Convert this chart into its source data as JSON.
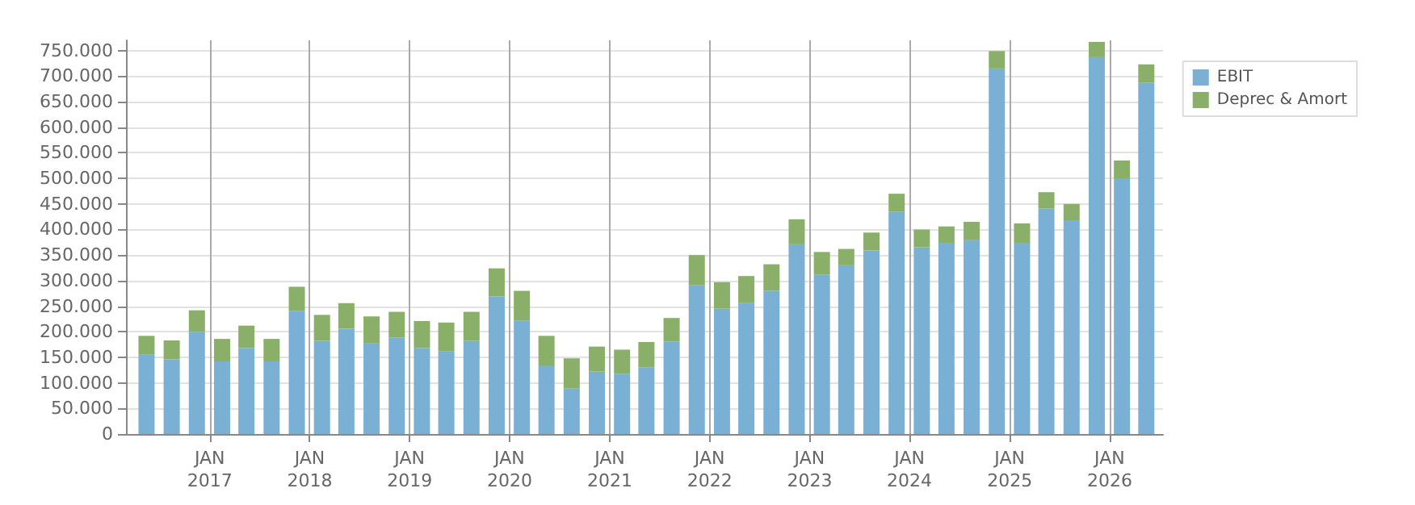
{
  "chart_data": {
    "type": "bar",
    "stacked": true,
    "x": [
      "2016-05-15",
      "2016-08-15",
      "2016-11-15",
      "2017-02-15",
      "2017-05-15",
      "2017-08-15",
      "2017-11-15",
      "2018-02-15",
      "2018-05-15",
      "2018-08-15",
      "2018-11-15",
      "2019-02-15",
      "2019-05-15",
      "2019-08-15",
      "2019-11-15",
      "2020-02-15",
      "2020-05-15",
      "2020-08-15",
      "2020-11-15",
      "2021-02-15",
      "2021-05-15",
      "2021-08-15",
      "2021-11-15",
      "2022-02-15",
      "2022-05-15",
      "2022-08-15",
      "2022-11-15",
      "2023-02-15",
      "2023-05-15",
      "2023-08-15",
      "2023-11-15",
      "2024-02-15",
      "2024-05-15",
      "2024-08-15",
      "2024-11-15",
      "2025-02-15",
      "2025-05-15",
      "2025-08-15",
      "2025-11-15",
      "2026-02-15",
      "2026-05-15"
    ],
    "series": [
      {
        "name": "EBIT",
        "color": "#7ab0d3",
        "values": [
          155000,
          146000,
          200000,
          142000,
          168000,
          142000,
          241000,
          182000,
          206000,
          177000,
          189000,
          168000,
          162000,
          182000,
          269000,
          222000,
          134000,
          89000,
          122000,
          118000,
          130000,
          181000,
          291000,
          245000,
          256000,
          280000,
          371000,
          312000,
          330000,
          359000,
          435000,
          365000,
          374000,
          379000,
          715000,
          374000,
          441000,
          418000,
          737000,
          500000,
          687000
        ]
      },
      {
        "name": "Deprec & Amort",
        "color": "#8aaf69",
        "values": [
          37000,
          37000,
          42000,
          44000,
          44000,
          44000,
          47000,
          51000,
          50000,
          53000,
          50000,
          53000,
          56000,
          57000,
          55000,
          58000,
          58000,
          59000,
          49000,
          47000,
          50000,
          46000,
          59000,
          52000,
          53000,
          52000,
          49000,
          44000,
          32000,
          35000,
          35000,
          35000,
          32000,
          36000,
          34000,
          38000,
          32000,
          32000,
          30000,
          35000,
          36000
        ]
      }
    ],
    "xlim": [
      "2016-03-01",
      "2026-07-15"
    ],
    "xticks": [
      {
        "value": "2017-01-01",
        "label": "JAN\n2017"
      },
      {
        "value": "2018-01-01",
        "label": "JAN\n2018"
      },
      {
        "value": "2019-01-01",
        "label": "JAN\n2019"
      },
      {
        "value": "2020-01-01",
        "label": "JAN\n2020"
      },
      {
        "value": "2021-01-01",
        "label": "JAN\n2021"
      },
      {
        "value": "2022-01-01",
        "label": "JAN\n2022"
      },
      {
        "value": "2023-01-01",
        "label": "JAN\n2023"
      },
      {
        "value": "2024-01-01",
        "label": "JAN\n2024"
      },
      {
        "value": "2025-01-01",
        "label": "JAN\n2025"
      },
      {
        "value": "2026-01-01",
        "label": "JAN\n2026"
      }
    ],
    "ylim": [
      0,
      770000
    ],
    "yticks": [
      0,
      {
        "value": 50000,
        "label": "50.000"
      },
      {
        "value": 100000,
        "label": "100.000"
      },
      {
        "value": 150000,
        "label": "150.000"
      },
      {
        "value": 200000,
        "label": "200.000"
      },
      {
        "value": 250000,
        "label": "250.000"
      },
      {
        "value": 300000,
        "label": "300.000"
      },
      {
        "value": 350000,
        "label": "350.000"
      },
      {
        "value": 400000,
        "label": "400.000"
      },
      {
        "value": 450000,
        "label": "450.000"
      },
      {
        "value": 500000,
        "label": "500.000"
      },
      {
        "value": 550000,
        "label": "550.000"
      },
      {
        "value": 600000,
        "label": "600.000"
      },
      {
        "value": 650000,
        "label": "650.000"
      },
      {
        "value": 700000,
        "label": "700.000"
      },
      {
        "value": 750000,
        "label": "750.000"
      }
    ],
    "grid": true,
    "legend": "top right"
  }
}
